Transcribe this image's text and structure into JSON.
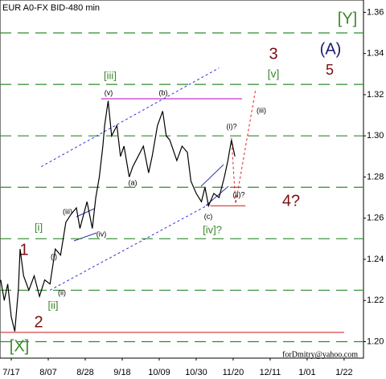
{
  "chart_data": {
    "type": "line",
    "title": "EUR A0-FX BID-480 min",
    "footer": "forDmitry@yahoo.com",
    "color": "#000000",
    "x": [
      -6,
      -4,
      -2,
      0,
      2,
      4,
      5,
      7,
      10,
      13,
      16,
      19,
      22,
      25,
      28,
      31,
      34,
      37,
      39,
      43,
      46,
      48,
      50,
      52,
      53,
      55,
      57,
      60,
      62,
      64,
      67,
      69,
      72,
      75,
      78,
      80,
      83,
      86,
      88,
      90,
      94,
      97,
      100,
      102,
      105,
      108,
      110,
      112,
      115,
      118,
      121,
      123,
      125,
      127
    ],
    "values": [
      1.23,
      1.22,
      1.228,
      1.212,
      1.205,
      1.225,
      1.245,
      1.232,
      1.225,
      1.232,
      1.222,
      1.23,
      1.228,
      1.245,
      1.242,
      1.258,
      1.262,
      1.265,
      1.255,
      1.268,
      1.255,
      1.27,
      1.28,
      1.295,
      1.305,
      1.317,
      1.3,
      1.305,
      1.29,
      1.295,
      1.28,
      1.285,
      1.29,
      1.295,
      1.282,
      1.29,
      1.305,
      1.312,
      1.3,
      1.298,
      1.288,
      1.295,
      1.292,
      1.278,
      1.272,
      1.268,
      1.275,
      1.266,
      1.272,
      1.27,
      1.28,
      1.288,
      1.298,
      1.29
    ],
    "xlim": [
      -6.4,
      200
    ],
    "ylim": [
      1.192,
      1.366
    ],
    "xticks": [
      {
        "value": 0,
        "label": "7/17"
      },
      {
        "value": 21,
        "label": "8/07"
      },
      {
        "value": 42,
        "label": "8/28"
      },
      {
        "value": 63,
        "label": "9/18"
      },
      {
        "value": 84,
        "label": "10/09"
      },
      {
        "value": 105,
        "label": "10/30"
      },
      {
        "value": 126,
        "label": "11/20"
      },
      {
        "value": 147,
        "label": "12/11"
      },
      {
        "value": 168,
        "label": "1/01"
      },
      {
        "value": 189,
        "label": "1/22"
      }
    ],
    "yticks": [
      {
        "value": 1.2,
        "label": "1.20"
      },
      1.22,
      1.24,
      1.26,
      1.28,
      {
        "value": 1.3,
        "label": "1.30"
      },
      1.32,
      1.34,
      1.36
    ],
    "levels": [
      1.35,
      1.325,
      1.3,
      1.275,
      1.25,
      1.225,
      1.2
    ],
    "hlines": [
      {
        "value": 1.2045,
        "from": -6,
        "to": 189,
        "color": "#d03030"
      },
      {
        "value": 1.318,
        "from": 51,
        "to": 131,
        "color": "#cc33cc"
      },
      {
        "value": 1.266,
        "from": 113,
        "to": 133,
        "color": "#d03030"
      }
    ],
    "trendlines": [
      {
        "x": [
          17,
          118
        ],
        "y": [
          1.285,
          1.333
        ],
        "color": "#3333dd"
      },
      {
        "x": [
          22,
          113
        ],
        "y": [
          1.225,
          1.267
        ],
        "color": "#3333dd"
      },
      {
        "x": [
          125,
          127.4,
          138.8
        ],
        "y": [
          1.299,
          1.267,
          1.323
        ],
        "color": "#e02020"
      }
    ],
    "annotations": [
      "[Y]",
      "(A)",
      "3",
      "5",
      "[v]",
      "[iii]",
      "(v)",
      "(b)",
      "(iii)",
      "(i)?",
      "(a)",
      "(ii)?",
      "4?",
      "(c)",
      "[iv]?",
      "(iii)",
      "(iv)",
      "[i]",
      "1",
      "(i)",
      "(ii)",
      "[ii]",
      "2",
      "[X]"
    ]
  }
}
